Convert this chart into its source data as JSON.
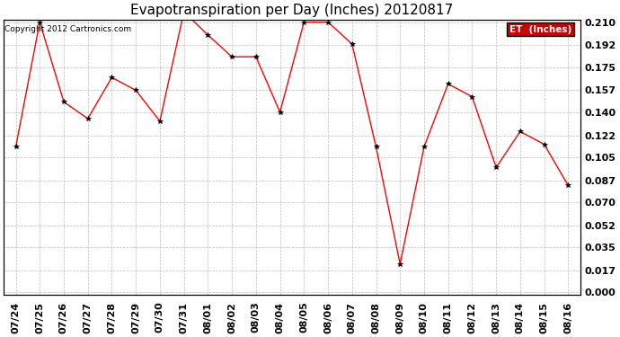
{
  "title": "Evapotranspiration per Day (Inches) 20120817",
  "copyright": "Copyright 2012 Cartronics.com",
  "legend_label": "ET  (Inches)",
  "dates": [
    "07/24",
    "07/25",
    "07/26",
    "07/27",
    "07/28",
    "07/29",
    "07/30",
    "07/31",
    "08/01",
    "08/02",
    "08/03",
    "08/04",
    "08/05",
    "08/06",
    "08/07",
    "08/08",
    "08/09",
    "08/10",
    "08/11",
    "08/12",
    "08/13",
    "08/14",
    "08/15",
    "08/16"
  ],
  "values": [
    0.113,
    0.21,
    0.148,
    0.135,
    0.167,
    0.157,
    0.133,
    0.218,
    0.2,
    0.183,
    0.183,
    0.14,
    0.21,
    0.21,
    0.193,
    0.113,
    0.022,
    0.113,
    0.162,
    0.152,
    0.097,
    0.125,
    0.115,
    0.083
  ],
  "line_color": "red",
  "marker_color": "black",
  "marker": "*",
  "ylim": [
    0.0,
    0.21
  ],
  "yticks": [
    0.0,
    0.017,
    0.035,
    0.052,
    0.07,
    0.087,
    0.105,
    0.122,
    0.14,
    0.157,
    0.175,
    0.192,
    0.21
  ],
  "background_color": "white",
  "grid_color": "#bbbbbb",
  "title_fontsize": 11,
  "tick_fontsize": 8,
  "legend_bg": "#cc0000",
  "legend_fg": "white",
  "font_family": "DejaVu Sans"
}
